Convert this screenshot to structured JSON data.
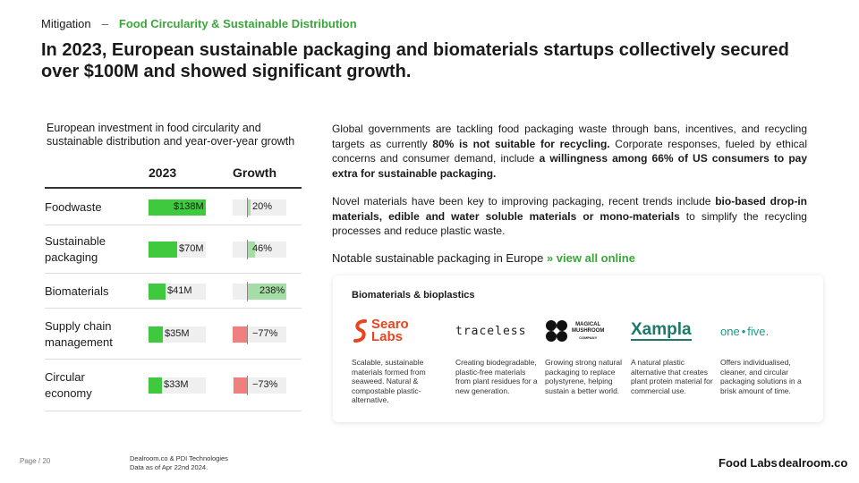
{
  "breadcrumb": {
    "section": "Mitigation",
    "separator": "–",
    "subsection": "Food Circularity & Sustainable Distribution"
  },
  "headline": "In 2023, European sustainable packaging and biomaterials startups collectively secured over $100M and showed significant growth.",
  "table": {
    "title": "European investment in food circularity and sustainable distribution and year-over-year growth",
    "col_2023": "2023",
    "col_growth": "Growth",
    "rows": [
      {
        "label": "Foodwaste",
        "investment_m": 138,
        "value": "$138M",
        "growth_pct": 20,
        "growth": "20%"
      },
      {
        "label": "Sustainable packaging",
        "investment_m": 70,
        "value": "$70M",
        "growth_pct": 46,
        "growth": "46%"
      },
      {
        "label": "Biomaterials",
        "investment_m": 41,
        "value": "$41M",
        "growth_pct": 238,
        "growth": "238%"
      },
      {
        "label": "Supply chain management",
        "investment_m": 35,
        "value": "$35M",
        "growth_pct": -77,
        "growth": "−77%"
      },
      {
        "label": "Circular economy",
        "investment_m": 33,
        "value": "$33M",
        "growth_pct": -73,
        "growth": "−73%"
      }
    ],
    "colors": {
      "bar": "#3ec93e",
      "growth_pos": "#a6dca6",
      "growth_neg": "#f08080"
    }
  },
  "para1": {
    "t1": "Global governments are tackling food packaging waste through bans, incentives, and recycling targets as currently ",
    "b1": "80% is not suitable for recycling.",
    "t2": " Corporate responses, fueled by ethical concerns and consumer demand, include ",
    "b2": "a willingness among 66% of US consumers to pay extra for sustainable packaging."
  },
  "para2": {
    "t1": "Novel materials have been key to improving packaging, recent trends include ",
    "b1": "bio-based drop-in materials, edible and water soluble materials or mono-materials",
    "t2": " to simplify the recycling processes and reduce plastic waste."
  },
  "notable": {
    "text": "Notable sustainable packaging in Europe",
    "link": "» view all online"
  },
  "card": {
    "title": "Biomaterials & bioplastics",
    "companies": [
      {
        "logo_text_1": "Searo",
        "logo_text_2": "Labs",
        "desc": "Scalable, sustainable materials formed from seaweed. Natural & compostable plastic-alternative."
      },
      {
        "logo_text": "traceless",
        "desc": "Creating biodegradable, plastic-free materials from plant residues for a new generation."
      },
      {
        "logo_text_1": "MAGICAL",
        "logo_text_2": "MUSHROOM",
        "logo_text_3": "COMPANY",
        "desc": "Growing strong natural packaging to replace polystyrene, helping sustain a better world."
      },
      {
        "logo_text": "Xampla",
        "desc": "A natural plastic alternative that creates plant protein material for commercial use."
      },
      {
        "logo_text_1": "one",
        "logo_text_2": "five.",
        "desc": "Offers individualised, cleaner, and circular packaging solutions in a brisk amount of time."
      }
    ]
  },
  "footer": {
    "page": "Page / 20",
    "source_1": "Dealroom.co & PDI Technologies",
    "source_2": "Data as of Apr 22nd 2024.",
    "brand_1": "Food Labs",
    "brand_2": "dealroom.co"
  }
}
